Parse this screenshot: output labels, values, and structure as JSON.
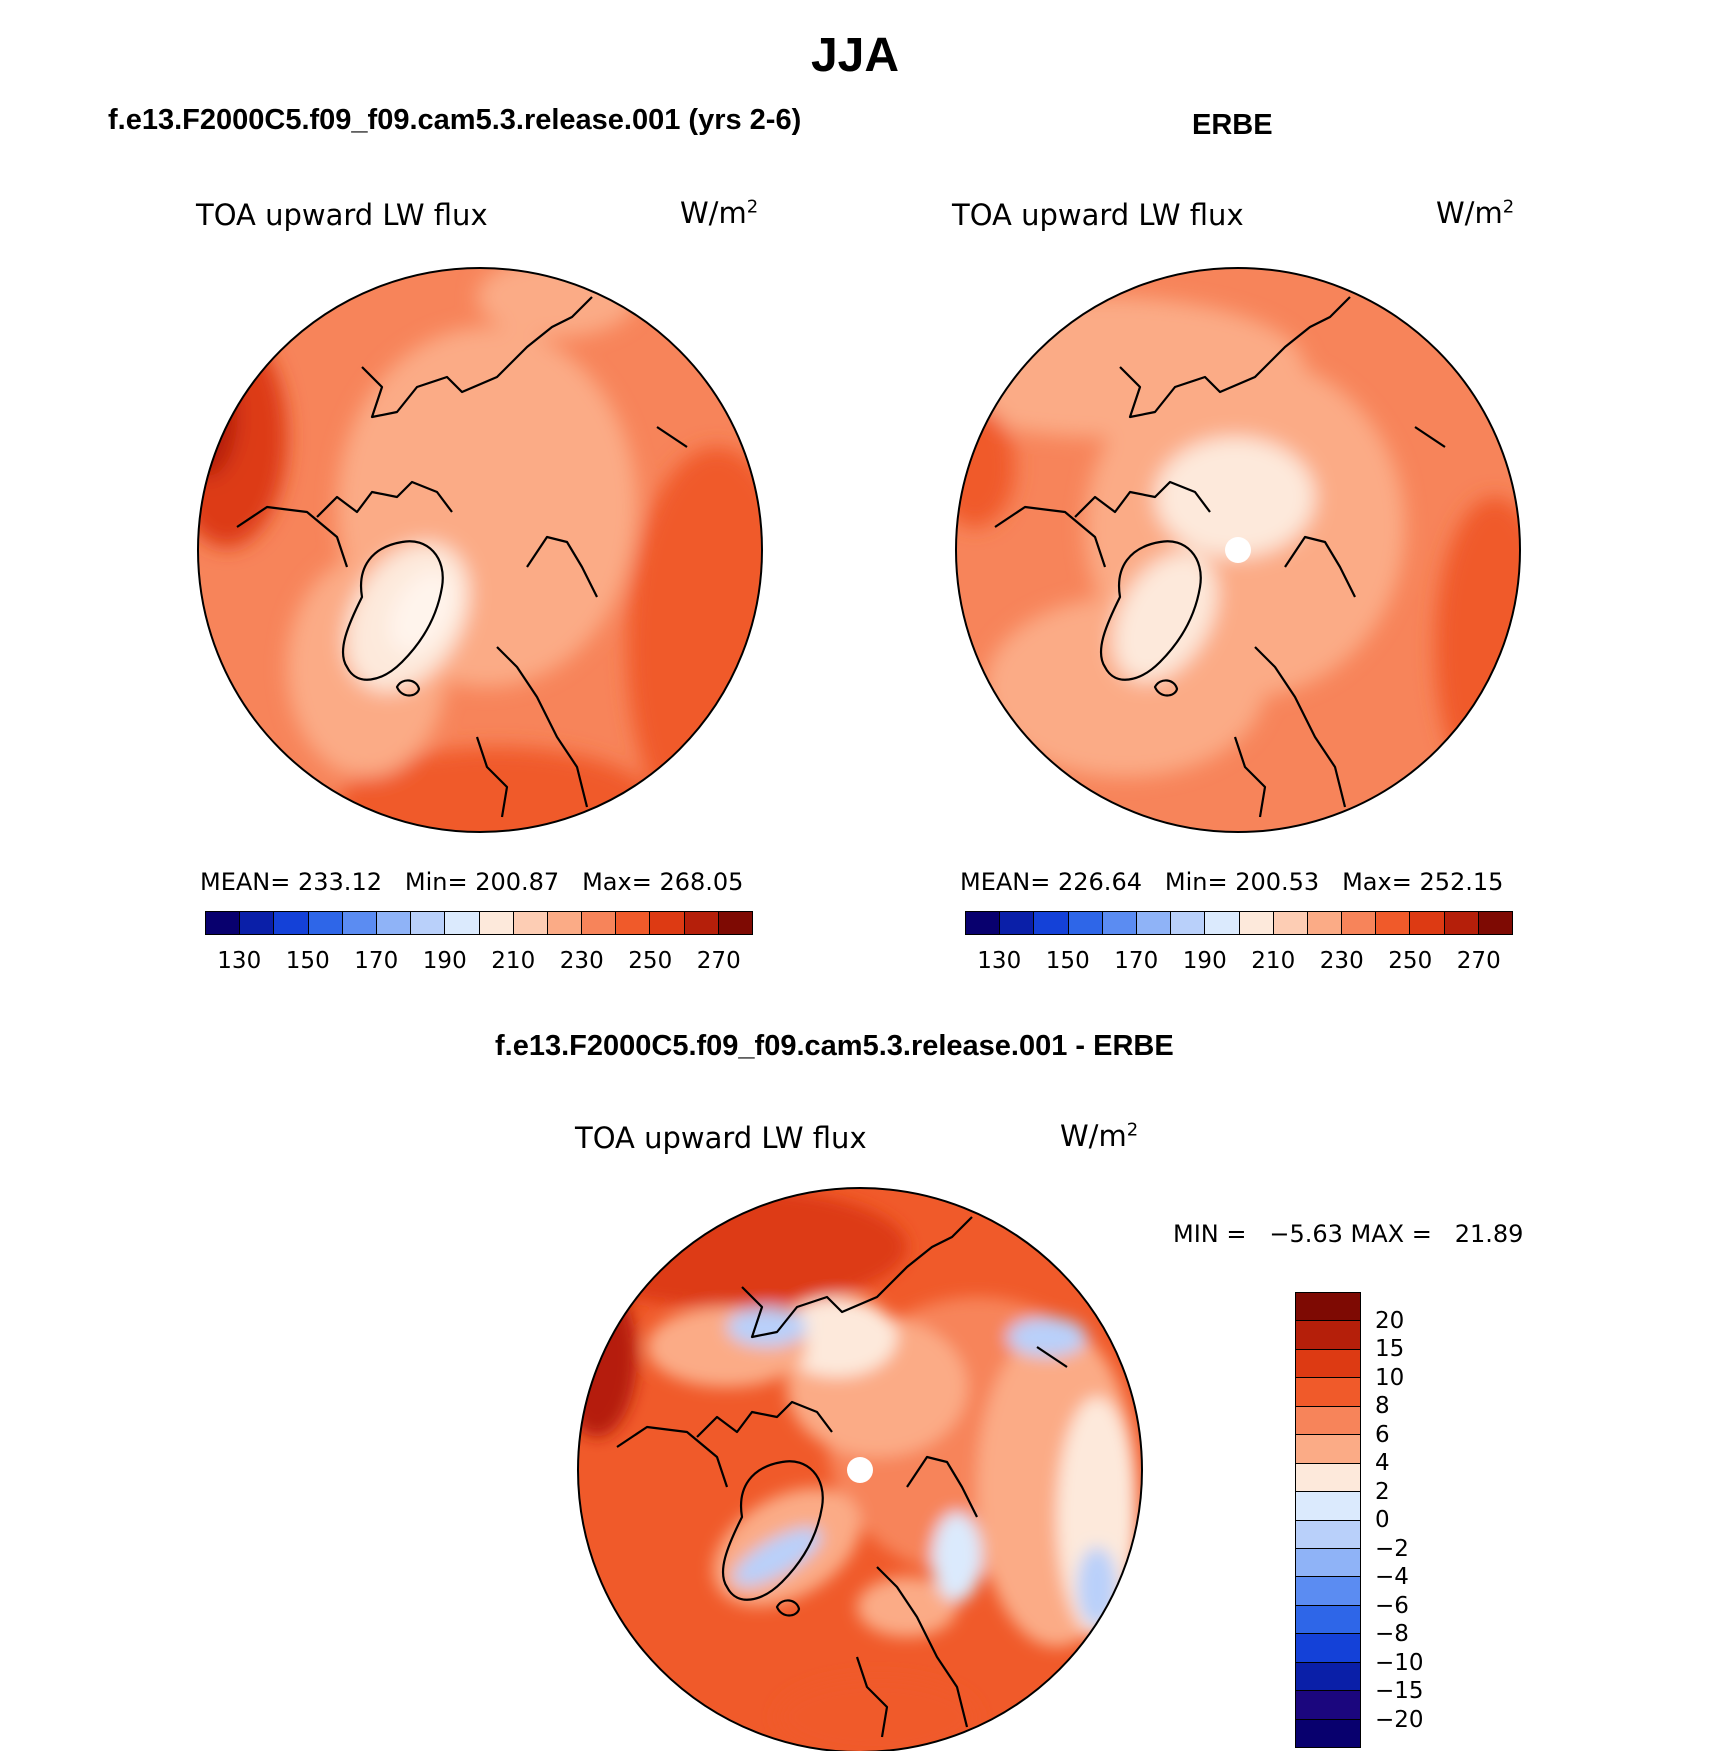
{
  "figure_title": "JJA",
  "panels": [
    {
      "title": "f.e13.F2000C5.f09_f09.cam5.3.release.001 (yrs 2-6)",
      "variable": "TOA upward LW flux",
      "units": "W/m",
      "units_sup": "2",
      "mean_label": "MEAN=",
      "mean": "233.12",
      "min_label": "Min=",
      "min": "200.87",
      "max_label": "Max=",
      "max": "268.05"
    },
    {
      "title": "ERBE",
      "variable": "TOA upward LW flux",
      "units": "W/m",
      "units_sup": "2",
      "mean_label": "MEAN=",
      "mean": "226.64",
      "min_label": "Min=",
      "min": "200.53",
      "max_label": "Max=",
      "max": "252.15"
    },
    {
      "title": "f.e13.F2000C5.f09_f09.cam5.3.release.001 - ERBE",
      "variable": "TOA upward LW flux",
      "units": "W/m",
      "units_sup": "2",
      "minmax_text": "MIN =   −5.63 MAX =   21.89"
    }
  ],
  "colorbar_abs": {
    "colors": [
      "#08006e",
      "#0a1fa8",
      "#1441d8",
      "#2e66e8",
      "#5b8cf2",
      "#8fb3f7",
      "#b9d0fa",
      "#dbeafd",
      "#fde9db",
      "#fdcdb4",
      "#fbab86",
      "#f7845a",
      "#f05a2a",
      "#dd3a13",
      "#b51f0a",
      "#7e0a03"
    ],
    "tick_labels": [
      "130",
      "150",
      "170",
      "190",
      "210",
      "230",
      "250",
      "270"
    ]
  },
  "colorbar_diff": {
    "colors": [
      "#7e0a03",
      "#b51f0a",
      "#dd3a13",
      "#f05a2a",
      "#f7845a",
      "#fbab86",
      "#fde9db",
      "#dbeafd",
      "#b9d0fa",
      "#8fb3f7",
      "#5b8cf2",
      "#2e66e8",
      "#1441d8",
      "#0a1fa8",
      "#1b067e",
      "#08006e"
    ],
    "tick_labels": [
      "20",
      "15",
      "10",
      "8",
      "6",
      "4",
      "2",
      "0",
      "−2",
      "−4",
      "−6",
      "−8",
      "−10",
      "−15",
      "−20"
    ]
  }
}
